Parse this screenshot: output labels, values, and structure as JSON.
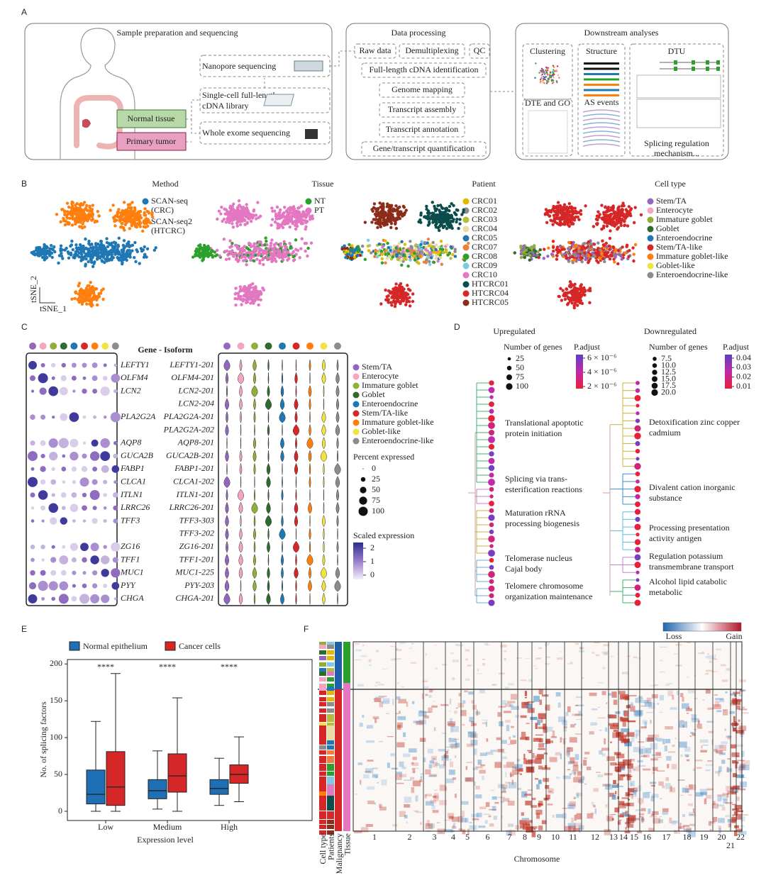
{
  "panel_a": {
    "label": "A",
    "sample_title": "Sample preparation and sequencing",
    "nanopore": "Nanopore sequencing",
    "library": [
      "Single-cell full-length",
      "cDNA library"
    ],
    "wes": "Whole exome sequencing",
    "normal": "Normal tissue",
    "tumor": "Primary tumor",
    "processing_title": "Data processing",
    "steps": [
      "Raw data",
      "Demultiplexing",
      "QC",
      "Full-length cDNA identification",
      "Genome mapping",
      "Transcript assembly",
      "Transcript annotation",
      "Gene/transcript quantification"
    ],
    "downstream_title": "Downstream analyses",
    "clustering": "Clustering",
    "dte": "DTE and GO",
    "structure": "Structure",
    "as_events": "AS events",
    "dtu": "DTU",
    "splicing": [
      "Splicing regulation",
      "mechanism..."
    ]
  },
  "panel_b": {
    "label": "B",
    "x_axis": "tSNE_1",
    "y_axis": "tSNE_2",
    "legends": [
      {
        "title": "Method",
        "items": [
          {
            "name": [
              "SCAN-seq",
              "(CRC)"
            ],
            "color": "#1f77b4"
          },
          {
            "name": [
              "SCAN-seq2",
              "(HTCRC)"
            ],
            "color": "#ff7f0e"
          }
        ]
      },
      {
        "title": "Tissue",
        "items": [
          {
            "name": "NT",
            "color": "#2ca02c"
          },
          {
            "name": "PT",
            "color": "#e377c2"
          }
        ]
      },
      {
        "title": "Patient",
        "items": [
          {
            "name": "CRC01",
            "color": "#e6b800"
          },
          {
            "name": "CRC02",
            "color": "#8c8c8c"
          },
          {
            "name": "CRC03",
            "color": "#b5bd3c"
          },
          {
            "name": "CRC04",
            "color": "#e8dca0"
          },
          {
            "name": "CRC05",
            "color": "#1f77b4"
          },
          {
            "name": "CRC07",
            "color": "#f07f3c"
          },
          {
            "name": "CRC08",
            "color": "#2ca02c"
          },
          {
            "name": "CRC09",
            "color": "#7ec8e8"
          },
          {
            "name": "CRC10",
            "color": "#e377c2"
          },
          {
            "name": "HTCRC01",
            "color": "#0b4d4d"
          },
          {
            "name": "HTCRC04",
            "color": "#d62728"
          },
          {
            "name": "HTCRC05",
            "color": "#8b2d1a"
          }
        ]
      },
      {
        "title": "Cell type",
        "items": [
          {
            "name": "Stem/TA",
            "color": "#9467bd"
          },
          {
            "name": "Enterocyte",
            "color": "#f4a6c0"
          },
          {
            "name": "Immature goblet",
            "color": "#8fae3a"
          },
          {
            "name": "Goblet",
            "color": "#2e6b2e"
          },
          {
            "name": "Enteroendocrine",
            "color": "#1f77b4"
          },
          {
            "name": "Stem/TA-like",
            "color": "#d62728"
          },
          {
            "name": "Immature goblet-like",
            "color": "#ff7f0e"
          },
          {
            "name": "Goblet-like",
            "color": "#f0e442"
          },
          {
            "name": "Enteroendocrine-like",
            "color": "#8c8c8c"
          }
        ]
      }
    ]
  },
  "panel_c": {
    "label": "C",
    "header": "Gene - Isoform",
    "genes": [
      "LEFTY1",
      "OLFM4",
      "LCN2",
      null,
      "PLA2G2A",
      null,
      "AQP8",
      "GUCA2B",
      "FABP1",
      "CLCA1",
      "ITLN1",
      "LRRC26",
      "TFF3",
      null,
      "ZG16",
      "TFF1",
      "MUC1",
      "PYY",
      "CHGA"
    ],
    "isoforms": [
      "LEFTY1-201",
      "OLFM4-201",
      "LCN2-201",
      "LCN2-204",
      "PLA2G2A-201",
      "PLA2G2A-202",
      "AQP8-201",
      "GUCA2B-201",
      "FABP1-201",
      "CLCA1-202",
      "ITLN1-201",
      "LRRC26-201",
      "TFF3-303",
      "TFF3-202",
      "ZG16-201",
      "TFF1-201",
      "MUC1-225",
      "PYY-203",
      "CHGA-201"
    ],
    "cell_types": [
      {
        "name": "Stem/TA",
        "color": "#9467bd"
      },
      {
        "name": "Enterocyte",
        "color": "#f4a6c0"
      },
      {
        "name": "Immature goblet",
        "color": "#8fae3a"
      },
      {
        "name": "Goblet",
        "color": "#2e6b2e"
      },
      {
        "name": "Enteroendocrine",
        "color": "#1f77b4"
      },
      {
        "name": "Stem/TA-like",
        "color": "#d62728"
      },
      {
        "name": "Immature goblet-like",
        "color": "#ff7f0e"
      },
      {
        "name": "Goblet-like",
        "color": "#f0e442"
      },
      {
        "name": "Enteroendocrine-like",
        "color": "#8c8c8c"
      }
    ],
    "percent_title": "Percent expressed",
    "percent_ticks": [
      0,
      25,
      50,
      75,
      100
    ],
    "scaled_title": "Scaled expression",
    "scaled_ticks": [
      2,
      1,
      0
    ]
  },
  "panel_d": {
    "label": "D",
    "up": {
      "title": "Upregulated",
      "count_title": "Number of genes",
      "counts": [
        25,
        50,
        75,
        100
      ],
      "p_title": "P.adjust",
      "p_labels": [
        {
          "value": 6e-06,
          "label": "6 × 10⁻⁶"
        },
        {
          "value": 4e-06,
          "label": "4 × 10⁻⁶"
        },
        {
          "value": 2e-06,
          "label": "2 × 10⁻⁶"
        }
      ],
      "terms": [
        [
          "Translational apoptotic",
          "protein initiation"
        ],
        [
          "Splicing via trans-",
          "esterification reactions"
        ],
        [
          "Maturation rRNA",
          "processing biogenesis"
        ],
        [
          "Telomerase nucleus",
          "Cajal body"
        ],
        [
          "Telomere chromosome",
          "organization maintenance"
        ]
      ]
    },
    "down": {
      "title": "Downregulated",
      "count_title": "Number of genes",
      "counts": [
        7.5,
        {
          "value": 10,
          "label": "10.0"
        },
        12.5,
        {
          "value": 15,
          "label": "15.0"
        },
        17.5,
        {
          "value": 20,
          "label": "20.0"
        }
      ],
      "p_title": "P.adjust",
      "p_labels": [
        0.04,
        0.03,
        0.02,
        0.01
      ],
      "terms": [
        [
          "Detoxification zinc copper",
          "cadmium"
        ],
        [
          "Divalent cation inorganic",
          "substance"
        ],
        [
          "Processing presentation",
          "activity antigen"
        ],
        [
          "Regulation potassium",
          "transmembrane transport"
        ],
        [
          "Alcohol lipid catabolic",
          "metabolic"
        ]
      ]
    }
  },
  "chart_data": {
    "type": "box",
    "panel_label": "E",
    "xlabel": "Expression level",
    "ylabel": "No. of splicing factors",
    "categories": [
      "Low",
      "Medium",
      "High"
    ],
    "series": [
      {
        "name": "Normal epithelium",
        "color": "#1f6fb5",
        "values": [
          {
            "min": 0,
            "q1": 10,
            "median": 23,
            "q3": 56,
            "max": 122
          },
          {
            "min": 3,
            "q1": 17,
            "median": 28,
            "q3": 43,
            "max": 82
          },
          {
            "min": 8,
            "q1": 23,
            "median": 31,
            "q3": 43,
            "max": 72
          }
        ]
      },
      {
        "name": "Cancer cells",
        "color": "#d62728",
        "values": [
          {
            "min": 0,
            "q1": 8,
            "median": 33,
            "q3": 81,
            "max": 187
          },
          {
            "min": 0,
            "q1": 26,
            "median": 48,
            "q3": 78,
            "max": 154
          },
          {
            "min": 13,
            "q1": 38,
            "median": 50,
            "q3": 63,
            "max": 101
          }
        ]
      }
    ],
    "annotations": [
      "****",
      "****",
      "****"
    ],
    "ylim": [
      -12.5,
      206
    ],
    "yticks": [
      0,
      50,
      100,
      150,
      200
    ]
  },
  "panel_f": {
    "label": "F",
    "colorbar": [
      "Loss",
      "Gain"
    ],
    "tracks": [
      "Cell type",
      "Patients",
      "Malignancy",
      "Tissue"
    ],
    "chromosomes": [
      "1",
      "2",
      "3",
      "4",
      "5",
      "6",
      "7",
      "8",
      "9",
      "10",
      "11",
      "12",
      "13",
      "14",
      "15",
      "16",
      "17",
      "18",
      "19",
      "20",
      "21",
      "22"
    ],
    "xlabel": "Chromosome"
  }
}
